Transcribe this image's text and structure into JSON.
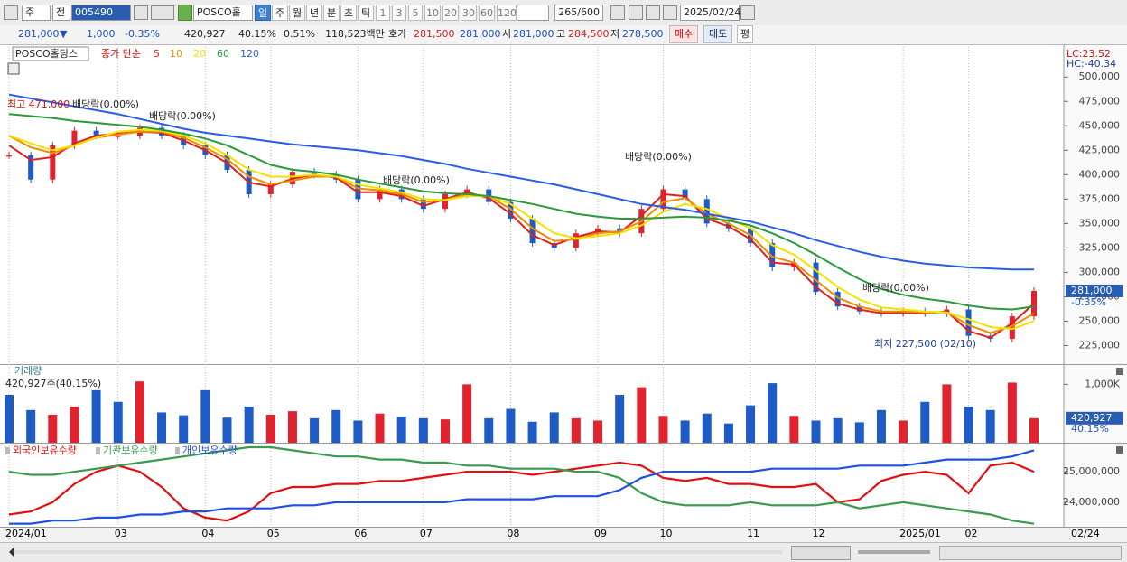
{
  "toolbar": {
    "period_type": "주",
    "prev": "전",
    "code": "005490",
    "name": "POSCO홀딩스",
    "units": [
      "일",
      "주",
      "월",
      "년",
      "분",
      "초",
      "틱"
    ],
    "intervals": [
      "1",
      "3",
      "5",
      "10",
      "20",
      "30",
      "60",
      "120"
    ],
    "count": "265",
    "count_max": "/600",
    "date": "2025/02/24"
  },
  "quote": {
    "price": "281,000",
    "arrow": "▼",
    "change": "1,000",
    "change_pct": "-0.35%",
    "volume": "420,927",
    "volume_pct": "40.15%",
    "turnover_pct": "0.51%",
    "amount": "118,523백만",
    "bid_label": "호가",
    "ask": "281,500",
    "bid": "281,000",
    "open_label": "시",
    "open": "281,000",
    "high_label": "고",
    "high": "284,500",
    "low_label": "저",
    "low": "278,500",
    "buy": "매수",
    "sell": "매도",
    "avg": "평"
  },
  "chart_data": [
    {
      "type": "line",
      "legend_label": "종가 단순",
      "lc_label": "LC:23.52",
      "hc_label": "HC:-40.34",
      "current_label": "281,000",
      "current_change": "-0.35%",
      "annotations": [
        "최고 471,000",
        "배당락(0.00%)",
        "배당락(0.00%)",
        "배당락(0.00%)",
        "배당락(0.00%)",
        "배당락(0,00%)",
        "최저 227,500 (02/10)"
      ],
      "ylim": [
        208800,
        525200
      ],
      "yticks": [
        {
          "value": 225000,
          "label": "225,000"
        },
        {
          "value": 250000,
          "label": "250,000"
        },
        {
          "value": 275000,
          "label": "275,000"
        },
        {
          "value": 300000,
          "label": "300,000"
        },
        {
          "value": 325000,
          "label": "325,000"
        },
        {
          "value": 350000,
          "label": "350,000"
        },
        {
          "value": 375000,
          "label": "375,000"
        },
        {
          "value": 400000,
          "label": "400,000"
        },
        {
          "value": 425000,
          "label": "425,000"
        },
        {
          "value": 450000,
          "label": "450,000"
        },
        {
          "value": 475000,
          "label": "475,000"
        },
        {
          "value": 500000,
          "label": "500,000"
        }
      ],
      "up_color": "#e0232e",
      "down_color": "#1f5bc6",
      "series": [
        {
          "name": "POSCO홀딩스",
          "color": "#333333",
          "style": "candle",
          "values": [
            420000,
            395000,
            430000,
            445000,
            440000,
            440000,
            448000,
            440000,
            430000,
            420000,
            405000,
            380000,
            390000,
            403000,
            400000,
            395000,
            375000,
            385000,
            375000,
            365000,
            380000,
            385000,
            372000,
            355000,
            330000,
            325000,
            340000,
            345000,
            340000,
            365000,
            385000,
            375000,
            350000,
            345000,
            330000,
            305000,
            310000,
            280000,
            265000,
            260000,
            258000,
            260000,
            258000,
            262000,
            235000,
            232000,
            255000,
            281000
          ]
        },
        {
          "name": "5",
          "color": "#e02020",
          "values": [
            430000,
            415000,
            418000,
            432000,
            440000,
            442000,
            444000,
            443000,
            435000,
            425000,
            412000,
            392000,
            388000,
            396000,
            400000,
            397000,
            382000,
            382000,
            378000,
            368000,
            375000,
            382000,
            376000,
            360000,
            338000,
            328000,
            336000,
            342000,
            341000,
            358000,
            380000,
            378000,
            355000,
            347000,
            334000,
            310000,
            308000,
            285000,
            268000,
            262000,
            258000,
            259000,
            258000,
            260000,
            240000,
            233000,
            248000,
            268000
          ]
        },
        {
          "name": "10",
          "color": "#f08c00",
          "values": [
            440000,
            428000,
            422000,
            430000,
            438000,
            441000,
            444000,
            444000,
            438000,
            428000,
            416000,
            398000,
            390000,
            394000,
            398000,
            398000,
            386000,
            384000,
            380000,
            372000,
            374000,
            380000,
            378000,
            365000,
            345000,
            332000,
            334000,
            340000,
            342000,
            352000,
            372000,
            376000,
            360000,
            350000,
            338000,
            316000,
            310000,
            292000,
            274000,
            265000,
            260000,
            260000,
            259000,
            259000,
            246000,
            238000,
            245000,
            258000
          ]
        },
        {
          "name": "20",
          "color": "#f2e200",
          "values": [
            440000,
            432000,
            425000,
            430000,
            438000,
            444000,
            446000,
            445000,
            440000,
            432000,
            420000,
            405000,
            398000,
            398000,
            400000,
            398000,
            390000,
            386000,
            382000,
            375000,
            374000,
            378000,
            378000,
            370000,
            355000,
            340000,
            335000,
            337000,
            340000,
            348000,
            362000,
            370000,
            365000,
            355000,
            345000,
            328000,
            318000,
            302000,
            285000,
            272000,
            264000,
            262000,
            260000,
            259000,
            252000,
            244000,
            242000,
            250000
          ]
        },
        {
          "name": "60",
          "color": "#2a9a3a",
          "values": [
            462000,
            460000,
            458000,
            455000,
            453000,
            451000,
            449000,
            446000,
            442000,
            437000,
            430000,
            420000,
            410000,
            405000,
            403000,
            400000,
            395000,
            391000,
            387000,
            383000,
            381000,
            380000,
            378000,
            374000,
            370000,
            365000,
            360000,
            357000,
            355000,
            355000,
            356000,
            357000,
            356000,
            353000,
            348000,
            340000,
            330000,
            318000,
            305000,
            293000,
            283000,
            277000,
            273000,
            270000,
            266000,
            263000,
            262000,
            265000
          ]
        },
        {
          "name": "120",
          "color": "#2b5ce6",
          "values": [
            482000,
            478000,
            474000,
            470000,
            466000,
            462000,
            457000,
            452000,
            447000,
            443000,
            440000,
            437000,
            434000,
            431000,
            429000,
            427000,
            425000,
            422000,
            419000,
            415000,
            411000,
            406000,
            402000,
            398000,
            394000,
            390000,
            385000,
            380000,
            375000,
            370000,
            367000,
            364000,
            360000,
            356000,
            352000,
            346000,
            340000,
            333000,
            327000,
            321000,
            316000,
            312000,
            309000,
            307000,
            305000,
            304000,
            303000,
            303000
          ]
        }
      ]
    },
    {
      "type": "bar",
      "title": "거래량",
      "subtitle": "420,927주(40.15%)",
      "current_label": "420,927",
      "current_pct": "40.15%",
      "ylim": [
        0,
        1300000
      ],
      "yticks": [
        {
          "value": 1000000,
          "label": "1,000K"
        }
      ],
      "values": [
        820000,
        560000,
        480000,
        620000,
        900000,
        700000,
        1050000,
        520000,
        470000,
        900000,
        430000,
        620000,
        480000,
        540000,
        420000,
        560000,
        380000,
        500000,
        450000,
        420000,
        400000,
        1000000,
        420000,
        580000,
        360000,
        520000,
        420000,
        380000,
        820000,
        950000,
        460000,
        380000,
        500000,
        330000,
        640000,
        1020000,
        460000,
        380000,
        420000,
        350000,
        560000,
        380000,
        700000,
        1000000,
        620000,
        560000,
        1030000,
        420927
      ],
      "colors": [
        "#1f5bc6",
        "#1f5bc6",
        "#e0232e",
        "#e0232e",
        "#1f5bc6",
        "#1f5bc6",
        "#e0232e",
        "#1f5bc6",
        "#1f5bc6",
        "#1f5bc6",
        "#1f5bc6",
        "#1f5bc6",
        "#e0232e",
        "#e0232e",
        "#1f5bc6",
        "#1f5bc6",
        "#1f5bc6",
        "#e0232e",
        "#1f5bc6",
        "#1f5bc6",
        "#e0232e",
        "#e0232e",
        "#1f5bc6",
        "#1f5bc6",
        "#1f5bc6",
        "#1f5bc6",
        "#e0232e",
        "#e0232e",
        "#1f5bc6",
        "#e0232e",
        "#e0232e",
        "#1f5bc6",
        "#1f5bc6",
        "#1f5bc6",
        "#1f5bc6",
        "#1f5bc6",
        "#e0232e",
        "#1f5bc6",
        "#1f5bc6",
        "#1f5bc6",
        "#1f5bc6",
        "#e0232e",
        "#1f5bc6",
        "#e0232e",
        "#1f5bc6",
        "#1f5bc6",
        "#e0232e",
        "#e0232e"
      ]
    },
    {
      "type": "line",
      "categories": [
        "2024/01",
        null,
        null,
        null,
        null,
        "03",
        null,
        null,
        null,
        "04",
        null,
        null,
        "05",
        null,
        null,
        null,
        "06",
        null,
        null,
        "07",
        null,
        null,
        null,
        "08",
        null,
        null,
        null,
        "09",
        null,
        null,
        "10",
        null,
        null,
        null,
        "11",
        null,
        null,
        "12",
        null,
        null,
        null,
        "2025/01",
        null,
        null,
        "02",
        null,
        null,
        null
      ],
      "x_end_label": "02/24",
      "ylim": [
        23230000,
        25860000
      ],
      "yticks": [
        {
          "value": 24000000,
          "label": "24,000,000"
        },
        {
          "value": 25000000,
          "label": "25,000,000"
        }
      ],
      "series": [
        {
          "name": "외국인보유수량",
          "color": "#e01010",
          "values": [
            23600000,
            23700000,
            24000000,
            24600000,
            25000000,
            25200000,
            25000000,
            24500000,
            23800000,
            23500000,
            23400000,
            23700000,
            24300000,
            24500000,
            24500000,
            24600000,
            24600000,
            24700000,
            24700000,
            24800000,
            24900000,
            25000000,
            25000000,
            25000000,
            24900000,
            25000000,
            25100000,
            25200000,
            25300000,
            25200000,
            24800000,
            24700000,
            24800000,
            24600000,
            24600000,
            24500000,
            24500000,
            24600000,
            24000000,
            24100000,
            24700000,
            24900000,
            25000000,
            24900000,
            24300000,
            25200000,
            25300000,
            25000000
          ]
        },
        {
          "name": "기관보유수량",
          "color": "#3a9a50",
          "values": [
            25000000,
            24900000,
            24900000,
            25000000,
            25100000,
            25200000,
            25300000,
            25400000,
            25500000,
            25600000,
            25700000,
            25800000,
            25800000,
            25700000,
            25600000,
            25500000,
            25500000,
            25400000,
            25400000,
            25300000,
            25300000,
            25200000,
            25200000,
            25100000,
            25100000,
            25100000,
            25000000,
            25000000,
            24800000,
            24300000,
            24000000,
            23900000,
            23900000,
            23900000,
            24000000,
            23900000,
            23900000,
            23900000,
            24000000,
            23800000,
            23900000,
            24000000,
            23900000,
            23800000,
            23700000,
            23600000,
            23400000,
            23300000
          ]
        },
        {
          "name": "개인보유수량",
          "color": "#2050e0",
          "values": [
            23300000,
            23300000,
            23400000,
            23400000,
            23500000,
            23500000,
            23600000,
            23600000,
            23700000,
            23700000,
            23800000,
            23800000,
            23800000,
            23900000,
            23900000,
            24000000,
            24000000,
            24000000,
            24000000,
            24000000,
            24000000,
            24100000,
            24100000,
            24100000,
            24100000,
            24200000,
            24200000,
            24200000,
            24400000,
            24800000,
            25000000,
            25000000,
            25000000,
            25000000,
            25000000,
            25100000,
            25100000,
            25100000,
            25100000,
            25200000,
            25200000,
            25200000,
            25300000,
            25400000,
            25400000,
            25400000,
            25500000,
            25700000
          ]
        }
      ]
    }
  ]
}
